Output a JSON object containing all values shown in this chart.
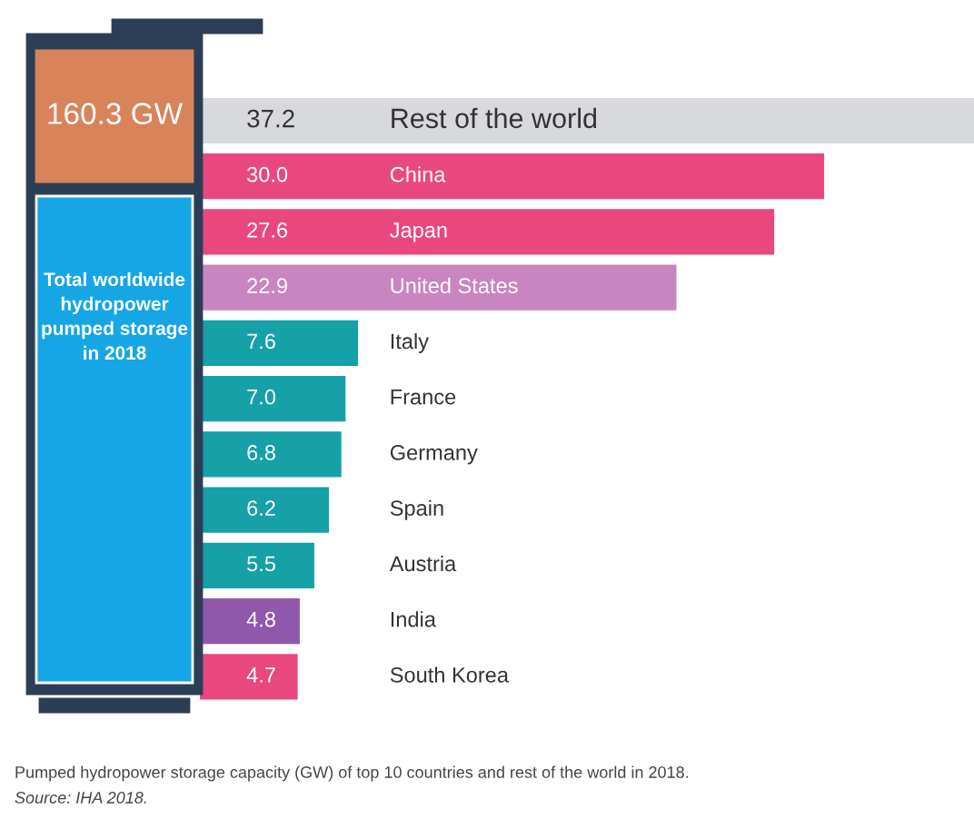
{
  "chart_data": {
    "type": "bar",
    "orientation": "horizontal",
    "value_labels": [
      "37.2",
      "30.0",
      "27.6",
      "22.9",
      "7.6",
      "7.0",
      "6.8",
      "6.2",
      "5.5",
      "4.8",
      "4.7"
    ],
    "categories": [
      "Rest of the world",
      "China",
      "Japan",
      "United States",
      "Italy",
      "France",
      "Germany",
      "Spain",
      "Austria",
      "India",
      "South Korea"
    ],
    "values": [
      37.2,
      30.0,
      27.6,
      22.9,
      7.6,
      7.0,
      6.8,
      6.2,
      5.5,
      4.8,
      4.7
    ],
    "colors": [
      "#d7d9dc",
      "#e8487e",
      "#e8487e",
      "#c985c0",
      "#16a0a8",
      "#16a0a8",
      "#16a0a8",
      "#16a0a8",
      "#16a0a8",
      "#9058ab",
      "#e8487e"
    ],
    "annotations": [
      "160.3 GW",
      "Total worldwide\nhydropower\npumped storage\nin 2018",
      "Pumped hydropower storage capacity (GW) of top 10 countries and rest of the world in 2018.",
      "Source: IHA 2018."
    ]
  }
}
